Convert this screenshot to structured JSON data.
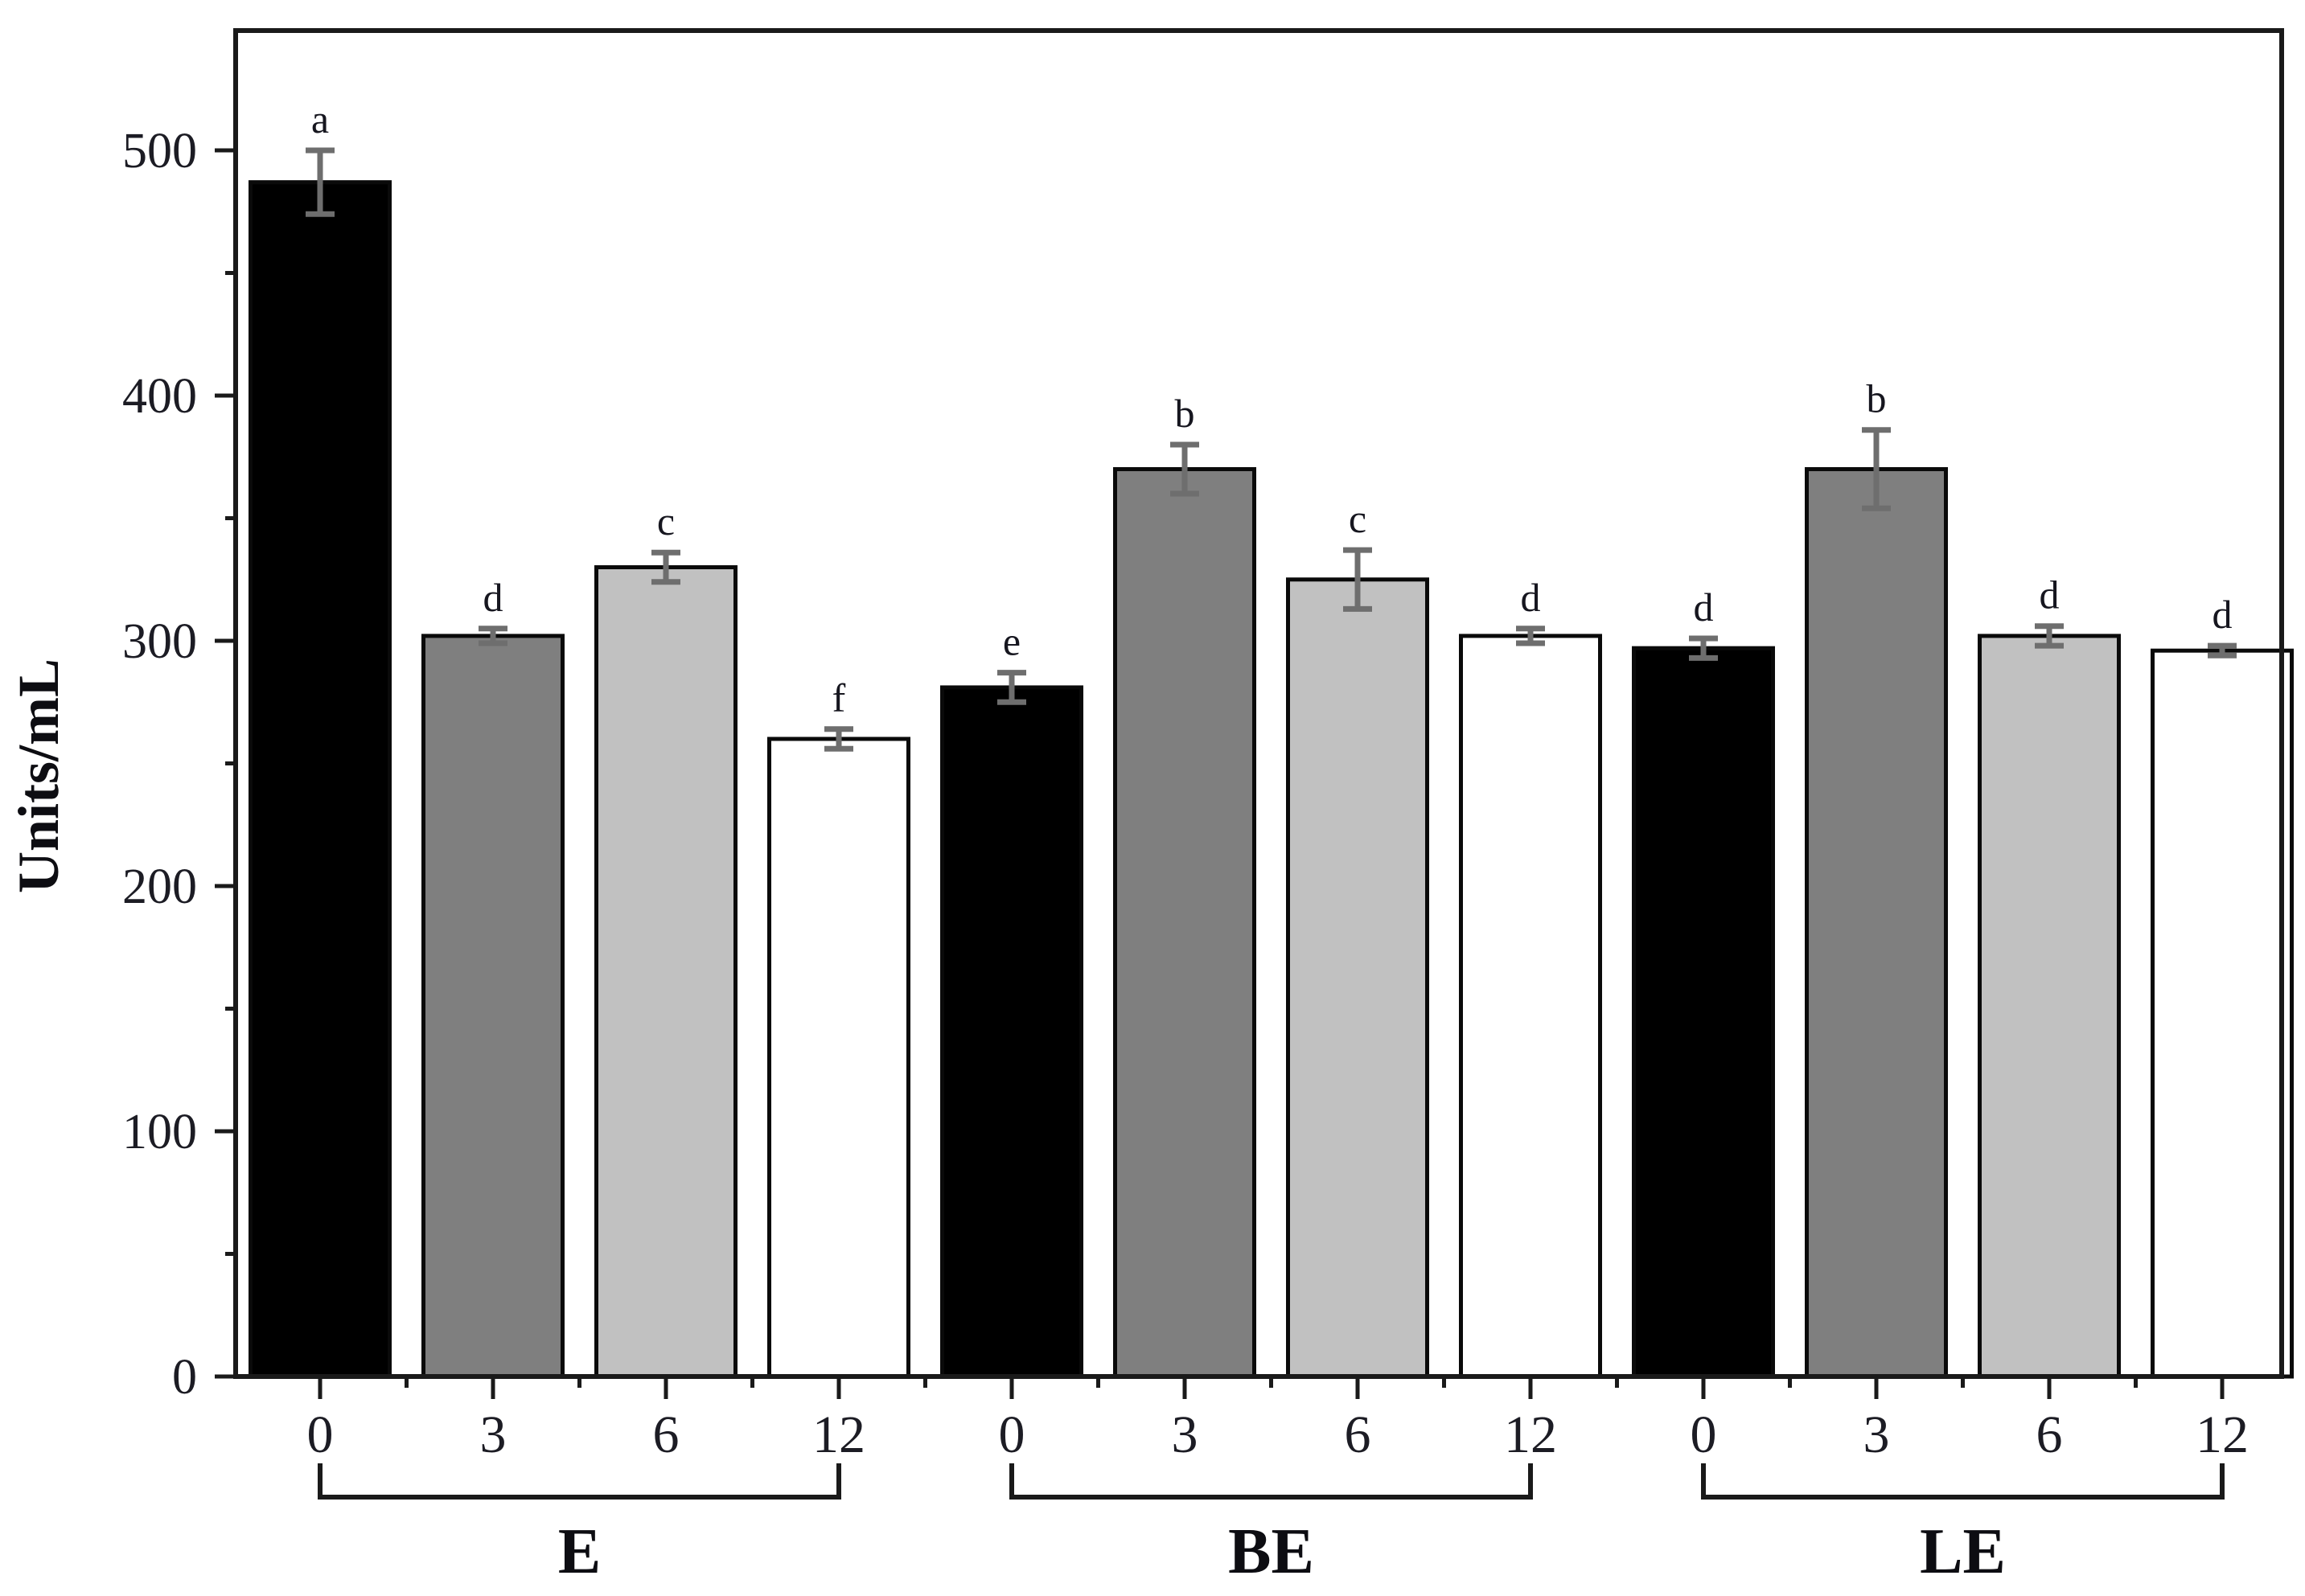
{
  "chart_data": {
    "type": "bar",
    "title": "",
    "xlabel": "",
    "ylabel": "Units/mL",
    "ylim": [
      0,
      550
    ],
    "yticks": [
      0,
      100,
      200,
      300,
      400,
      500
    ],
    "y_minor_ticks": [
      50,
      150,
      250,
      350,
      450
    ],
    "grid": "off",
    "legend": "none",
    "categories_per_group": [
      "0",
      "3",
      "6",
      "12"
    ],
    "groups": [
      {
        "label": "E",
        "bars": [
          {
            "x": "0",
            "value": 487,
            "error": 13,
            "letter": "a",
            "color_key": "black"
          },
          {
            "x": "3",
            "value": 302,
            "error": 3,
            "letter": "d",
            "color_key": "dark_gray"
          },
          {
            "x": "6",
            "value": 330,
            "error": 6,
            "letter": "c",
            "color_key": "light_gray"
          },
          {
            "x": "12",
            "value": 260,
            "error": 4,
            "letter": "f",
            "color_key": "white"
          }
        ]
      },
      {
        "label": "BE",
        "bars": [
          {
            "x": "0",
            "value": 281,
            "error": 6,
            "letter": "e",
            "color_key": "black"
          },
          {
            "x": "3",
            "value": 370,
            "error": 10,
            "letter": "b",
            "color_key": "dark_gray"
          },
          {
            "x": "6",
            "value": 325,
            "error": 12,
            "letter": "c",
            "color_key": "light_gray"
          },
          {
            "x": "12",
            "value": 302,
            "error": 3,
            "letter": "d",
            "color_key": "white"
          }
        ]
      },
      {
        "label": "LE",
        "bars": [
          {
            "x": "0",
            "value": 297,
            "error": 4,
            "letter": "d",
            "color_key": "black"
          },
          {
            "x": "3",
            "value": 370,
            "error": 16,
            "letter": "b",
            "color_key": "dark_gray"
          },
          {
            "x": "6",
            "value": 302,
            "error": 4,
            "letter": "d",
            "color_key": "light_gray"
          },
          {
            "x": "12",
            "value": 296,
            "error": 2,
            "letter": "d",
            "color_key": "white"
          }
        ]
      }
    ],
    "colors": {
      "black": "#000000",
      "dark_gray": "#7f7f7f",
      "light_gray": "#c1c1c1",
      "white": "#ffffff",
      "bar_outline": "#0a0a0a",
      "error_bar": "#6e6e6e",
      "axis": "#1a1a1a"
    }
  }
}
